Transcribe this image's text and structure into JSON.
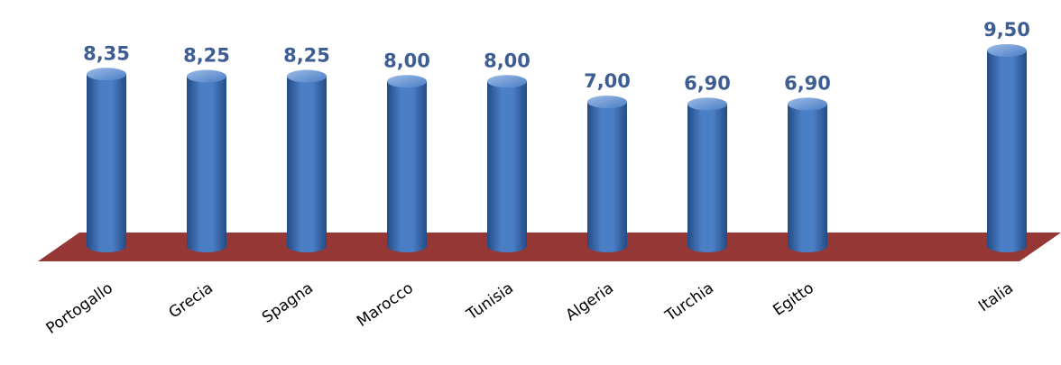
{
  "chart_data": {
    "type": "bar",
    "style": "3d-cylinder",
    "categories": [
      "Portogallo",
      "Grecia",
      "Spagna",
      "Marocco",
      "Tunisia",
      "Algeria",
      "Turchia",
      "Egitto",
      "Italia"
    ],
    "values": [
      8.35,
      8.25,
      8.25,
      8.0,
      8.0,
      7.0,
      6.9,
      6.9,
      9.5
    ],
    "value_labels": [
      "8,35",
      "8,25",
      "8,25",
      "8,00",
      "8,00",
      "7,00",
      "6,90",
      "6,90",
      "9,50"
    ],
    "ylim": [
      0,
      9.5
    ],
    "grid": false,
    "legend": "none",
    "colors": {
      "bar": "#4A7EC5",
      "bar_dark": "#244B85",
      "bar_light": "#9DBBE6",
      "floor": "#953735",
      "value_label": "#3E5E93",
      "tick_label": "#000000"
    }
  }
}
